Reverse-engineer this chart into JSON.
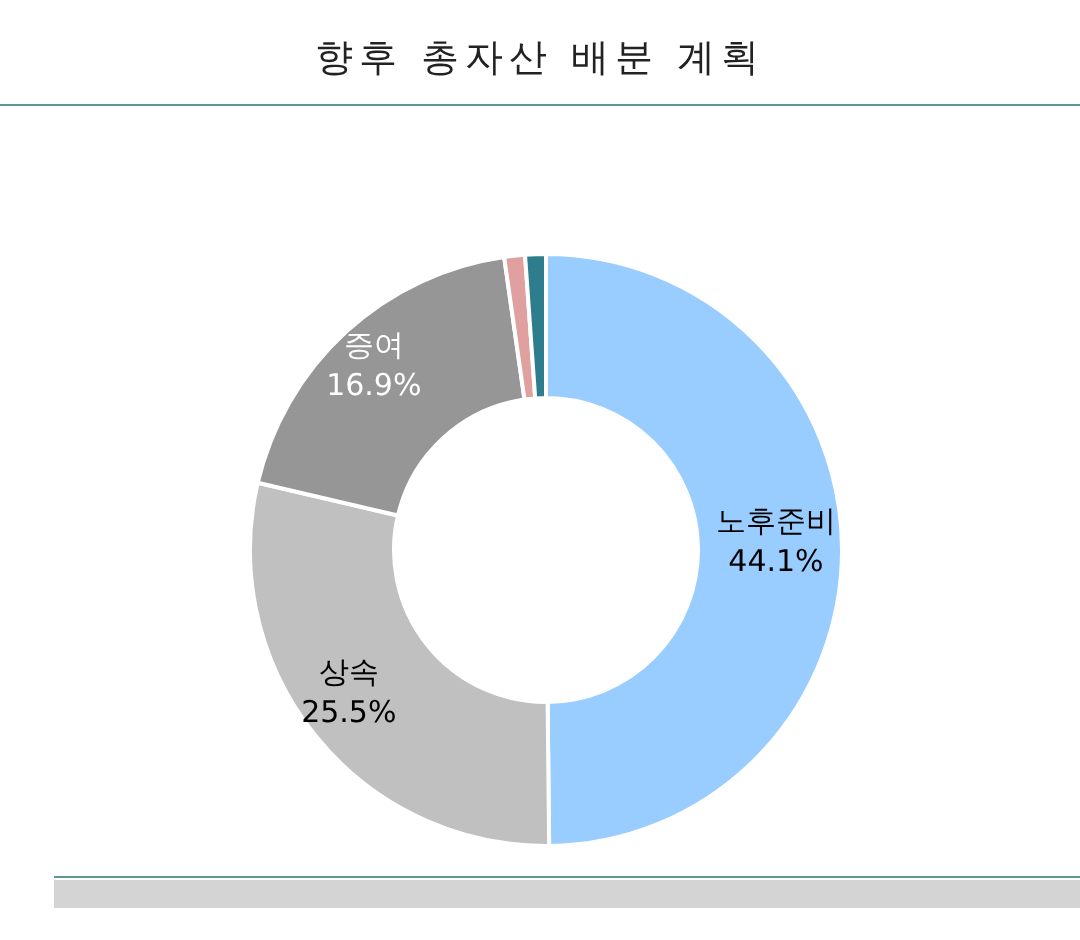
{
  "chart_data": {
    "type": "donut",
    "title": "향후 총자산 배분 계획",
    "categories": [
      "노후준비",
      "상속",
      "증여",
      null,
      null
    ],
    "values": [
      44.1,
      25.5,
      16.9,
      1.0,
      1.0
    ],
    "colors": [
      "#99ccff",
      "#c0c0c0",
      "#969696",
      "#e0a0a0",
      "#2e7d8c"
    ],
    "value_labels": [
      "44.1%",
      "25.5%",
      "16.9%",
      null,
      null
    ],
    "legend": false
  }
}
